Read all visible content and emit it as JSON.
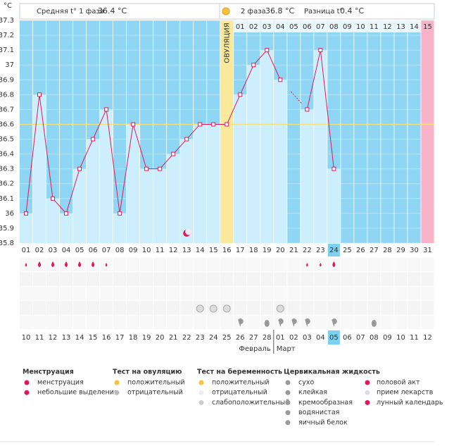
{
  "header": {
    "celsius": "°C",
    "phase1_label": "Средняя t° 1 фаза",
    "phase1_value": "36.4 °C",
    "phase2_label": "2 фаза",
    "phase2_value": "36.8 °C",
    "diff_label": "Разница t°",
    "diff_value": "0.4 °C"
  },
  "chart_data": {
    "type": "line",
    "color": "#e0185a",
    "categories": [
      "01",
      "02",
      "03",
      "04",
      "05",
      "06",
      "07",
      "08",
      "09",
      "10",
      "11",
      "12",
      "13",
      "14",
      "15",
      "16",
      "17",
      "18",
      "19",
      "20",
      "21",
      "22",
      "23",
      "24",
      "25",
      "26",
      "27",
      "28",
      "29",
      "30",
      "31"
    ],
    "values": [
      36.0,
      36.8,
      36.1,
      36.0,
      36.3,
      36.5,
      36.7,
      36.0,
      36.6,
      36.3,
      36.3,
      36.4,
      36.5,
      36.6,
      36.6,
      36.6,
      36.8,
      37.0,
      37.1,
      36.9,
      null,
      36.7,
      37.1,
      36.3,
      null,
      null,
      null,
      null,
      null,
      null,
      null
    ],
    "ylim": [
      35.8,
      37.3
    ],
    "yticks": [
      37.3,
      37.2,
      37.1,
      37,
      36.9,
      36.8,
      36.7,
      36.6,
      36.5,
      36.4,
      36.3,
      36.2,
      36.1,
      36,
      35.9,
      35.8
    ],
    "coverline": 36.6,
    "ovulation_label": "ОВУЛЯЦИЯ",
    "ovulation_index": 15,
    "highlight_index": 23,
    "phase2_days": [
      "01",
      "02",
      "03",
      "04",
      "05",
      "06",
      "07",
      "08",
      "09",
      "10",
      "11",
      "12",
      "13",
      "14",
      "15"
    ],
    "dates": [
      "10",
      "11",
      "12",
      "13",
      "14",
      "15",
      "16",
      "17",
      "18",
      "19",
      "20",
      "21",
      "22",
      "23",
      "24",
      "25",
      "26",
      "27",
      "28",
      "01",
      "02",
      "03",
      "04",
      "05",
      "06",
      "07",
      "08",
      "09",
      "10",
      "11",
      "12"
    ],
    "weekends": [
      5,
      6,
      12,
      13,
      19,
      20,
      26,
      27
    ],
    "months": [
      "Февраль",
      "Март"
    ]
  },
  "legend": [
    {
      "title": "Менструация",
      "items": [
        "менструация",
        "небольшие выделения"
      ]
    },
    {
      "title": "Тест на овуляцию",
      "items": [
        "положительный",
        "отрицательный"
      ]
    },
    {
      "title": "Тест на беременность",
      "items": [
        "положительный",
        "отрицательный",
        "слабоположительный"
      ]
    },
    {
      "title": "Цервикальная жидкость",
      "items": [
        "сухо",
        "клейкая",
        "кремообразная",
        "водянистая",
        "яичный белок"
      ]
    },
    {
      "items": [
        "половой акт",
        "прием лекарств",
        "лунный календарь"
      ]
    }
  ]
}
